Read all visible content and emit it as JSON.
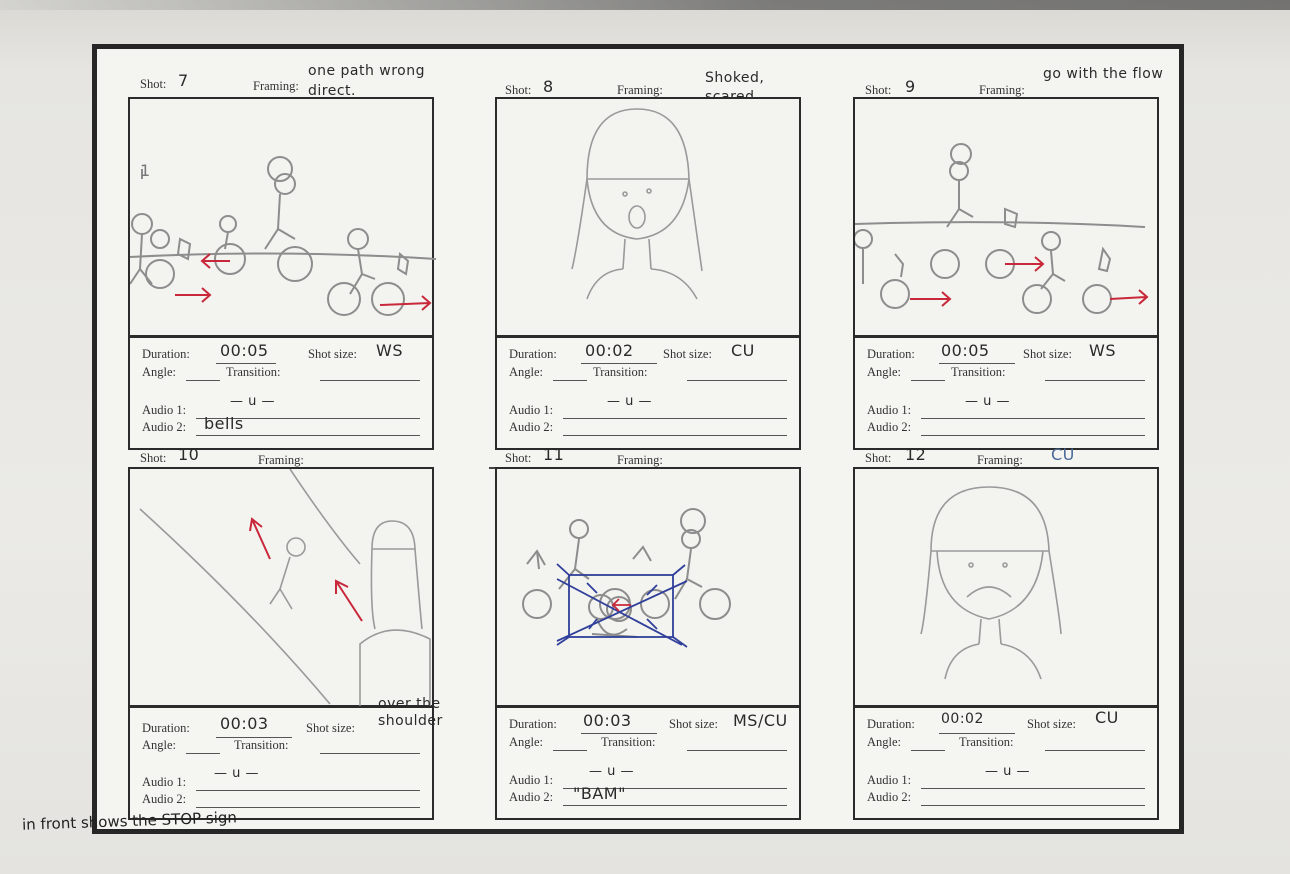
{
  "form": {
    "shot_label": "Shot:",
    "framing_label": "Framing:",
    "duration_label": "Duration:",
    "shot_size_label": "Shot size:",
    "angle_label": "Angle:",
    "transition_label": "Transition:",
    "audio1_label": "Audio 1:",
    "audio2_label": "Audio 2:"
  },
  "shots": [
    {
      "number": "7",
      "framing": "one path wrong direct.",
      "duration": "00:05",
      "shot_size": "WS",
      "audio1": "— u —",
      "audio2": "bells"
    },
    {
      "number": "8",
      "framing": "Shoked, scared, frustrated",
      "duration": "00:02",
      "shot_size": "CU",
      "audio1": "— u —",
      "audio2": ""
    },
    {
      "number": "9",
      "framing": "go with the flow",
      "duration": "00:05",
      "shot_size": "WS",
      "audio1": "— u —",
      "audio2": ""
    },
    {
      "number": "10",
      "framing": "",
      "duration": "00:03",
      "shot_size": "over the shoulder",
      "audio1": "— u —",
      "audio2": ""
    },
    {
      "number": "11",
      "framing": "",
      "duration": "00:03",
      "shot_size": "MS/CU",
      "audio1": "— u —",
      "audio2": "\"BAM\""
    },
    {
      "number": "12",
      "framing": "CU",
      "duration": "00:02",
      "shot_size": "CU",
      "audio1": "— u —",
      "audio2": ""
    }
  ],
  "bottom_note": "in front shows the STOP sign",
  "panel_number_7": "1",
  "colors": {
    "pencil": "#8a8a8a",
    "red_arrow": "#c8283a",
    "blue_pen": "#2f3f9a"
  }
}
